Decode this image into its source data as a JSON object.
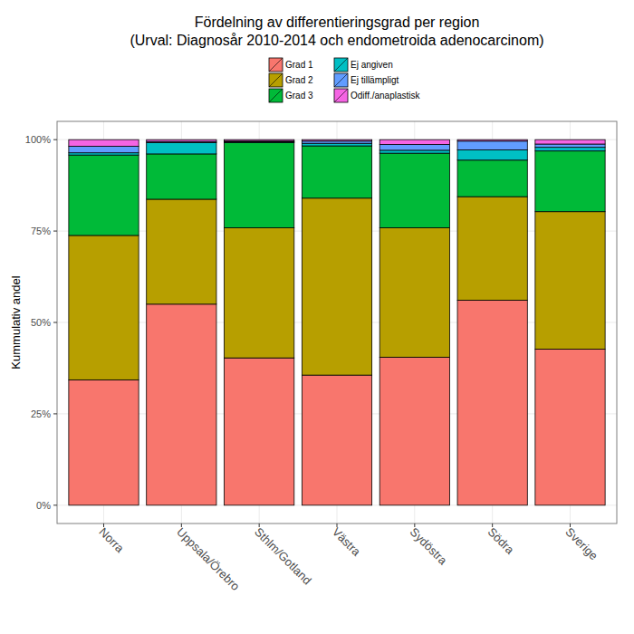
{
  "chart_data": {
    "type": "bar",
    "stacked": true,
    "title": "Fördelning av differentieringsgrad per region",
    "subtitle": "(Urval: Diagnosår 2010-2014 och endometroida adenocarcinom)",
    "y_label": "Kummulativ andel",
    "categories": [
      "Norra",
      "Uppsala/Örebro",
      "Sthlm/Gotland",
      "Västra",
      "Sydöstra",
      "Södra",
      "Sverige"
    ],
    "series": [
      {
        "name": "Grad 1",
        "color": "#F8766D",
        "values": [
          34.3,
          55.0,
          40.3,
          35.6,
          40.5,
          56.1,
          42.7
        ]
      },
      {
        "name": "Grad 2",
        "color": "#B79F00",
        "values": [
          39.5,
          28.7,
          35.6,
          48.4,
          35.4,
          28.3,
          37.6
        ]
      },
      {
        "name": "Grad 3",
        "color": "#00BA38",
        "values": [
          22.0,
          12.4,
          23.3,
          14.3,
          20.4,
          10.0,
          16.6
        ]
      },
      {
        "name": "Ej angiven",
        "color": "#00BFC4",
        "values": [
          0.6,
          3.1,
          0.2,
          0.7,
          0.8,
          2.8,
          1.0
        ]
      },
      {
        "name": "Ej tillämpligt",
        "color": "#619CFF",
        "values": [
          1.8,
          0.3,
          0.2,
          0.6,
          1.6,
          2.4,
          0.9
        ]
      },
      {
        "name": "Odiff./anaplastisk",
        "color": "#F564E3",
        "values": [
          1.8,
          0.5,
          0.4,
          0.4,
          1.3,
          0.4,
          1.2
        ]
      }
    ],
    "ylim": [
      -5,
      105
    ],
    "yticks": [
      {
        "value": 0,
        "label": "0%"
      },
      {
        "value": 25,
        "label": "25%"
      },
      {
        "value": 50,
        "label": "50%"
      },
      {
        "value": 75,
        "label": "75%"
      },
      {
        "value": 100,
        "label": "100%"
      }
    ],
    "grid": true,
    "legend": "top"
  }
}
